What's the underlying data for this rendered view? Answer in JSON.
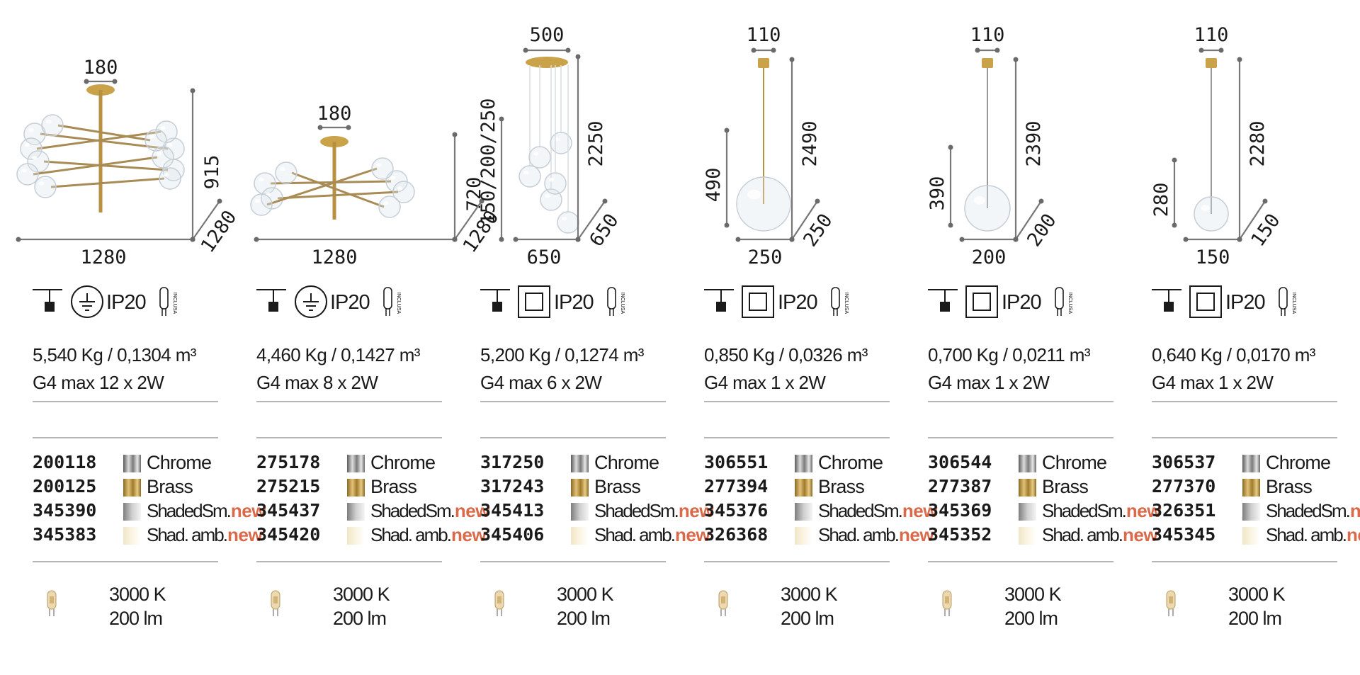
{
  "products": [
    {
      "drawing": {
        "top": "180",
        "height": "915",
        "depth": "1280",
        "width": "1280",
        "type": "multi-arm"
      },
      "protection": "IP20",
      "earth": true,
      "bulb_label": "INCLUSA",
      "weight": "5,540 Kg / 0,1304 m³",
      "lamp": "G4 max 12 x 2W",
      "variants": [
        {
          "code": "200118",
          "finish": "Chrome",
          "swatch": "chrome",
          "new": ""
        },
        {
          "code": "200125",
          "finish": "Brass",
          "swatch": "brass",
          "new": ""
        },
        {
          "code": "345390",
          "finish": "ShadedSm.",
          "swatch": "smoke",
          "new": "new"
        },
        {
          "code": "345383",
          "finish": "Shad. amb.",
          "swatch": "amber",
          "new": "new"
        }
      ],
      "ct": "3000 K",
      "lm": "200 lm"
    },
    {
      "drawing": {
        "top": "180",
        "height": "720",
        "depth": "1280",
        "width": "1280",
        "type": "multi-arm-flat"
      },
      "protection": "IP20",
      "earth": true,
      "bulb_label": "INCLUSA",
      "weight": "4,460 Kg / 0,1427 m³",
      "lamp": "G4 max 8 x 2W",
      "variants": [
        {
          "code": "275178",
          "finish": "Chrome",
          "swatch": "chrome",
          "new": ""
        },
        {
          "code": "275215",
          "finish": "Brass",
          "swatch": "brass",
          "new": ""
        },
        {
          "code": "345437",
          "finish": "ShadedSm.",
          "swatch": "smoke",
          "new": "new"
        },
        {
          "code": "345420",
          "finish": "Shad. amb.",
          "swatch": "amber",
          "new": "new"
        }
      ],
      "ct": "3000 K",
      "lm": "200 lm"
    },
    {
      "drawing": {
        "top": "500",
        "height": "2250",
        "depth": "650",
        "width": "650",
        "side": "150/200/250",
        "type": "cluster"
      },
      "protection": "IP20",
      "earth": false,
      "bulb_label": "INCLUSA",
      "weight": "5,200 Kg / 0,1274 m³",
      "lamp": "G4 max 6 x 2W",
      "variants": [
        {
          "code": "317250",
          "finish": "Chrome",
          "swatch": "chrome",
          "new": ""
        },
        {
          "code": "317243",
          "finish": "Brass",
          "swatch": "brass",
          "new": ""
        },
        {
          "code": "345413",
          "finish": "ShadedSm.",
          "swatch": "smoke",
          "new": "new"
        },
        {
          "code": "345406",
          "finish": "Shad. amb.",
          "swatch": "amber",
          "new": "new"
        }
      ],
      "ct": "3000 K",
      "lm": "200 lm"
    },
    {
      "drawing": {
        "top": "110",
        "height": "2490",
        "depth": "250",
        "width": "250",
        "side": "490",
        "type": "globe"
      },
      "protection": "IP20",
      "earth": false,
      "bulb_label": "INCLUSA",
      "weight": "0,850 Kg / 0,0326 m³",
      "lamp": "G4 max 1 x 2W",
      "variants": [
        {
          "code": "306551",
          "finish": "Chrome",
          "swatch": "chrome",
          "new": ""
        },
        {
          "code": "277394",
          "finish": "Brass",
          "swatch": "brass",
          "new": ""
        },
        {
          "code": "345376",
          "finish": "ShadedSm.",
          "swatch": "smoke",
          "new": "new"
        },
        {
          "code": "326368",
          "finish": "Shad. amb.",
          "swatch": "amber",
          "new": "new"
        }
      ],
      "ct": "3000 K",
      "lm": "200 lm"
    },
    {
      "drawing": {
        "top": "110",
        "height": "2390",
        "depth": "200",
        "width": "200",
        "side": "390",
        "type": "globe"
      },
      "protection": "IP20",
      "earth": false,
      "bulb_label": "INCLUSA",
      "weight": "0,700 Kg / 0,0211 m³",
      "lamp": "G4 max 1 x 2W",
      "variants": [
        {
          "code": "306544",
          "finish": "Chrome",
          "swatch": "chrome",
          "new": ""
        },
        {
          "code": "277387",
          "finish": "Brass",
          "swatch": "brass",
          "new": ""
        },
        {
          "code": "345369",
          "finish": "ShadedSm.",
          "swatch": "smoke",
          "new": "new"
        },
        {
          "code": "345352",
          "finish": "Shad. amb.",
          "swatch": "amber",
          "new": "new"
        }
      ],
      "ct": "3000 K",
      "lm": "200 lm"
    },
    {
      "drawing": {
        "top": "110",
        "height": "2280",
        "depth": "150",
        "width": "150",
        "side": "280",
        "type": "globe"
      },
      "protection": "IP20",
      "earth": false,
      "bulb_label": "INCLUSA",
      "weight": "0,640 Kg / 0,0170 m³",
      "lamp": "G4 max 1 x 2W",
      "variants": [
        {
          "code": "306537",
          "finish": "Chrome",
          "swatch": "chrome",
          "new": ""
        },
        {
          "code": "277370",
          "finish": "Brass",
          "swatch": "brass",
          "new": ""
        },
        {
          "code": "326351",
          "finish": "ShadedSm.",
          "swatch": "smoke",
          "new": "new"
        },
        {
          "code": "345345",
          "finish": "Shad. amb.",
          "swatch": "amber",
          "new": "new"
        }
      ],
      "ct": "3000 K",
      "lm": "200 lm"
    }
  ],
  "colors": {
    "accent_new": "#d96a4a",
    "rule": "#b5b5b5",
    "brass": "#c9a24a",
    "dimension": "#777777"
  }
}
